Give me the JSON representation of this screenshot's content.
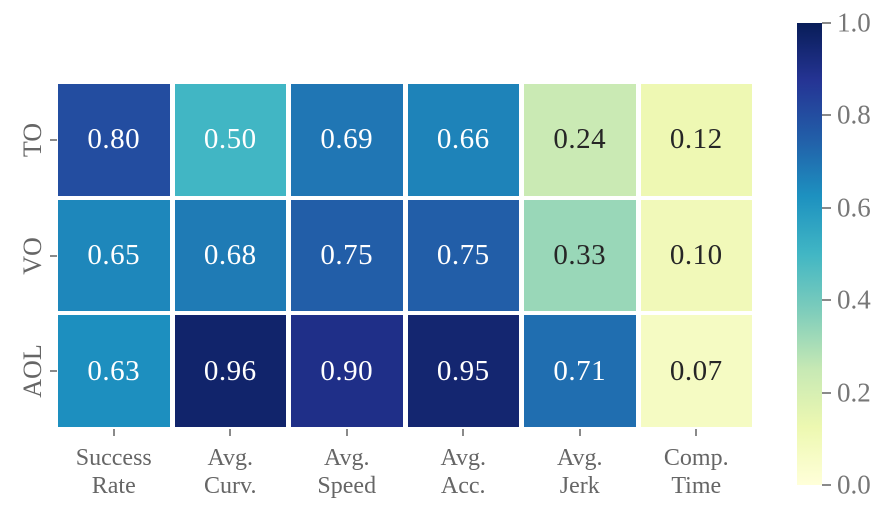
{
  "figure": {
    "background_color": "#ffffff",
    "axis_label_color": "#666666",
    "colorbar_label_color": "#777777",
    "tick_mark_color": "#8a8a8a"
  },
  "chart_data": {
    "type": "heatmap",
    "title": "",
    "xlabel": "",
    "ylabel": "",
    "rows": [
      "TO",
      "VO",
      "AOL"
    ],
    "columns": [
      "Success\nRate",
      "Avg.\nCurv.",
      "Avg.\nSpeed",
      "Avg.\nAcc.",
      "Avg.\nJerk",
      "Comp.\nTime"
    ],
    "values": [
      [
        0.8,
        0.5,
        0.69,
        0.66,
        0.24,
        0.12
      ],
      [
        0.65,
        0.68,
        0.75,
        0.75,
        0.33,
        0.1
      ],
      [
        0.63,
        0.96,
        0.9,
        0.95,
        0.71,
        0.07
      ]
    ],
    "value_decimals": 2,
    "vmin": 0.0,
    "vmax": 1.0,
    "grid": false,
    "cell_gap_color": "#ffffff",
    "annotation_colors": {
      "on_dark": "#ffffff",
      "on_light": "#262626"
    },
    "colormap": {
      "name": "YlGnBu",
      "stops": [
        "#ffffd9",
        "#edf8b1",
        "#c7e9b4",
        "#7fcdbb",
        "#41b6c4",
        "#1d91c0",
        "#225ea8",
        "#253494",
        "#081d58"
      ]
    },
    "colorbar": {
      "position": "right",
      "tick_values": [
        1.0,
        0.8,
        0.6,
        0.4,
        0.2,
        0.0
      ],
      "tick_labels": [
        "1.0",
        "0.8",
        "0.6",
        "0.4",
        "0.2",
        "0.0"
      ]
    }
  }
}
